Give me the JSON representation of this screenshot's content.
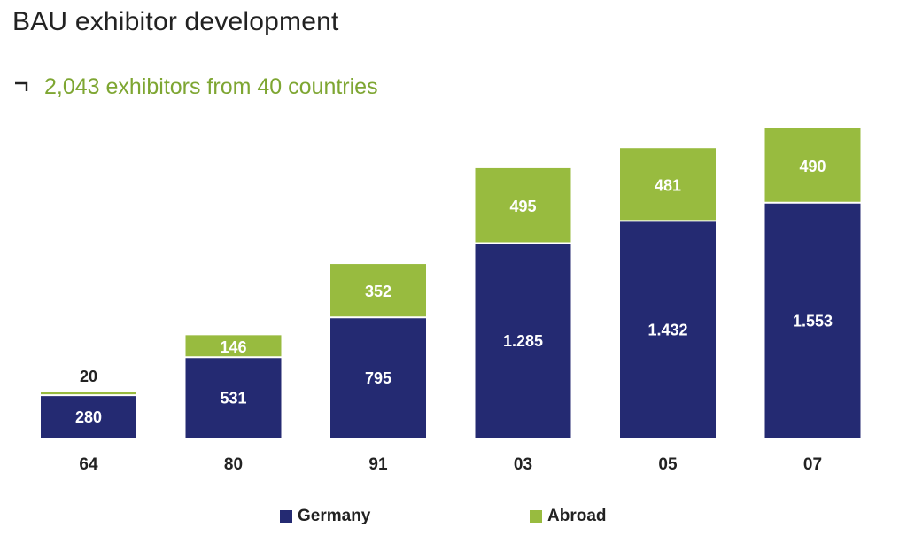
{
  "title": "BAU exhibitor development",
  "subtitle": "2,043 exhibitors from 40 countries",
  "colors": {
    "germany": "#242a72",
    "abroad": "#98bb3f",
    "subtitle": "#7ea632"
  },
  "icons": {
    "subtitle_bullet": "arrow-icon"
  },
  "legend": [
    {
      "label": "Germany",
      "color": "#242a72"
    },
    {
      "label": "Abroad",
      "color": "#98bb3f"
    }
  ],
  "chart_data": {
    "type": "bar",
    "stacked": true,
    "categories": [
      "64",
      "80",
      "91",
      "03",
      "05",
      "07"
    ],
    "series": [
      {
        "name": "Germany",
        "values": [
          280,
          531,
          795,
          1285,
          1432,
          1553
        ],
        "labels": [
          "280",
          "531",
          "795",
          "1.285",
          "1.432",
          "1.553"
        ]
      },
      {
        "name": "Abroad",
        "values": [
          20,
          146,
          352,
          495,
          481,
          490
        ],
        "labels": [
          "20",
          "146",
          "352",
          "495",
          "481",
          "490"
        ]
      }
    ],
    "ylim": [
      0,
      2043
    ],
    "grid": false,
    "legend_position": "bottom"
  }
}
